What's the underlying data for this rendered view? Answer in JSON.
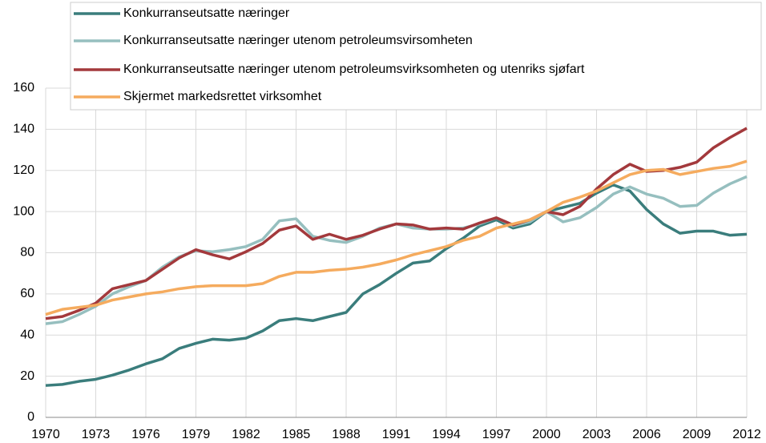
{
  "chart_data": {
    "type": "line",
    "x": [
      1970,
      1971,
      1972,
      1973,
      1974,
      1975,
      1976,
      1977,
      1978,
      1979,
      1980,
      1981,
      1982,
      1983,
      1984,
      1985,
      1986,
      1987,
      1988,
      1989,
      1990,
      1991,
      1992,
      1993,
      1994,
      1995,
      1996,
      1997,
      1998,
      1999,
      2000,
      2001,
      2002,
      2003,
      2004,
      2005,
      2006,
      2007,
      2008,
      2009,
      2010,
      2011,
      2012
    ],
    "series": [
      {
        "name": "Konkurranseutsatte næringer",
        "color": "#3a7d7c",
        "values": [
          15.5,
          16,
          17.5,
          18.5,
          20.5,
          23,
          26,
          28.5,
          33.5,
          36,
          38,
          37.5,
          38.5,
          42,
          47,
          48,
          47,
          49,
          51,
          60,
          64.5,
          70,
          75,
          76,
          82,
          87,
          93,
          96,
          92,
          94,
          100,
          102,
          104,
          109,
          113,
          110,
          101,
          94,
          89.5,
          90.5,
          90.5,
          88.5,
          89
        ]
      },
      {
        "name": "Konkurranseutsatte næringer utenom petroleumsvirsomheten",
        "color": "#96bfbf",
        "values": [
          45.5,
          46.5,
          50,
          54,
          60,
          63.5,
          66.5,
          73,
          78,
          81,
          80.5,
          81.5,
          83,
          86.5,
          95.5,
          96.5,
          88,
          86,
          85,
          88,
          92,
          94,
          92,
          91.5,
          91.5,
          92,
          94,
          97,
          93,
          95,
          100,
          95,
          97,
          102,
          108.5,
          112,
          108.5,
          106.5,
          102.5,
          103,
          109,
          113.5,
          117
        ]
      },
      {
        "name": "Konkurranseutsatte næringer utenom petroleumsvirksomheten og utenriks sjøfart",
        "color": "#a3393c",
        "values": [
          48,
          49,
          52,
          55.5,
          62.5,
          64.5,
          66.5,
          72,
          77.5,
          81.5,
          79,
          77,
          80.5,
          84.5,
          91,
          93,
          86.5,
          89,
          86.5,
          88.5,
          91.5,
          94,
          93.5,
          91.5,
          92,
          91.5,
          94.5,
          97,
          93.5,
          96,
          100,
          98.5,
          102.5,
          111,
          118,
          123,
          119.5,
          120,
          121.5,
          124,
          131,
          136,
          140.5
        ]
      },
      {
        "name": "Skjermet markedsrettet virksomhet",
        "color": "#f5ab5e",
        "values": [
          50,
          52.5,
          53.5,
          54.5,
          57,
          58.5,
          60,
          61,
          62.5,
          63.5,
          64,
          64,
          64,
          65,
          68.5,
          70.5,
          70.5,
          71.5,
          72,
          73,
          74.5,
          76.5,
          79,
          81,
          83,
          86,
          88,
          92,
          94,
          96,
          100,
          104.5,
          107,
          110,
          114,
          118,
          120,
          120.5,
          118,
          119.5,
          121,
          122,
          124.5
        ]
      }
    ],
    "xlim": [
      1970,
      2012
    ],
    "xticks": [
      1970,
      1973,
      1976,
      1979,
      1982,
      1985,
      1988,
      1991,
      1994,
      1997,
      2000,
      2003,
      2006,
      2009,
      2012
    ],
    "ylim": [
      0,
      160
    ],
    "yticks": [
      0,
      20,
      40,
      60,
      80,
      100,
      120,
      140,
      160
    ],
    "grid": true
  }
}
